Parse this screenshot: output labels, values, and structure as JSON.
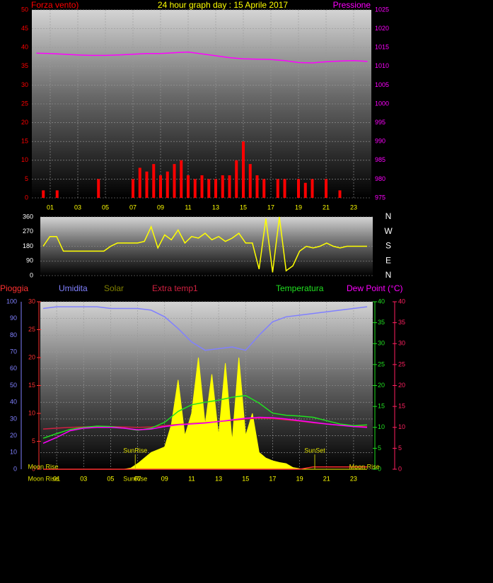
{
  "chart_data": [
    {
      "type": "line",
      "title": "24 hour graph day : 15 Aprile 2017",
      "grid": true,
      "xlim": [
        0,
        24
      ],
      "xticks": [
        {
          "value": 1,
          "label": "01"
        },
        {
          "value": 3,
          "label": "03"
        },
        {
          "value": 5,
          "label": "05"
        },
        {
          "value": 7,
          "label": "07"
        },
        {
          "value": 9,
          "label": "09"
        },
        {
          "value": 11,
          "label": "11"
        },
        {
          "value": 13,
          "label": "13"
        },
        {
          "value": 15,
          "label": "15"
        },
        {
          "value": 17,
          "label": "17"
        },
        {
          "value": 19,
          "label": "19"
        },
        {
          "value": 21,
          "label": "21"
        },
        {
          "value": 23,
          "label": "23"
        }
      ],
      "axes": [
        {
          "side": "left",
          "color": "#ff0000",
          "lim": [
            0,
            50
          ],
          "ticks": [
            0,
            5,
            10,
            15,
            20,
            25,
            30,
            35,
            40,
            45,
            50
          ]
        },
        {
          "side": "right",
          "color": "#ff00ff",
          "lim": [
            975,
            1025
          ],
          "ticks": [
            975,
            980,
            985,
            990,
            995,
            1000,
            1005,
            1010,
            1015,
            1020,
            1025
          ]
        }
      ],
      "series": [
        {
          "name": "Forza vento)",
          "color": "#ff0000",
          "mark": "bar",
          "axis": 0,
          "x": [
            0,
            0.5,
            1,
            1.5,
            2,
            2.5,
            3,
            3.5,
            4,
            4.5,
            5,
            5.5,
            6,
            6.5,
            7,
            7.5,
            8,
            8.5,
            9,
            9.5,
            10,
            10.5,
            11,
            11.5,
            12,
            12.5,
            13,
            13.5,
            14,
            14.5,
            15,
            15.5,
            16,
            16.5,
            17,
            17.5,
            18,
            18.5,
            19,
            19.5,
            20,
            20.5,
            21,
            21.5,
            22,
            22.5,
            23,
            23.5,
            24
          ],
          "values": [
            0,
            2,
            0,
            2,
            0,
            0,
            0,
            0,
            0,
            5,
            0,
            0,
            0,
            0,
            5,
            8,
            7,
            9,
            6,
            7,
            9,
            10,
            6,
            5,
            6,
            5,
            5,
            6,
            6,
            10,
            15,
            9,
            6,
            5,
            0,
            5,
            5,
            0,
            5,
            4,
            5,
            0,
            5,
            0,
            2,
            0,
            0,
            0,
            0
          ]
        },
        {
          "name": "Pressione",
          "color": "#ff00ff",
          "mark": "line",
          "axis": 1,
          "x": [
            0,
            1,
            2,
            3,
            4,
            5,
            6,
            7,
            8,
            9,
            10,
            11,
            12,
            13,
            14,
            15,
            16,
            17,
            18,
            19,
            20,
            21,
            22,
            23,
            24
          ],
          "values": [
            1013.5,
            1013.4,
            1013.2,
            1013.0,
            1012.9,
            1012.9,
            1013.0,
            1013.2,
            1013.4,
            1013.4,
            1013.6,
            1013.8,
            1013.3,
            1012.8,
            1012.3,
            1012.0,
            1011.9,
            1011.8,
            1011.5,
            1011.0,
            1010.9,
            1011.2,
            1011.4,
            1011.5,
            1011.3
          ]
        }
      ]
    },
    {
      "type": "line",
      "grid": true,
      "xlim": [
        0,
        24
      ],
      "axes": [
        {
          "side": "left",
          "color": "#ffffff",
          "lim": [
            0,
            360
          ],
          "ticks": [
            0,
            90,
            180,
            270,
            360
          ]
        },
        {
          "side": "right",
          "color": "#ffffff",
          "lim": [
            0,
            360
          ],
          "ticks": [
            {
              "value": 360,
              "label": "N"
            },
            {
              "value": 270,
              "label": "W"
            },
            {
              "value": 180,
              "label": "S"
            },
            {
              "value": 90,
              "label": "E"
            },
            {
              "value": 0,
              "label": "N"
            }
          ]
        }
      ],
      "series": [
        {
          "color": "#ffff00",
          "mark": "line",
          "axis": 0,
          "x": [
            0,
            0.5,
            1,
            1.5,
            2,
            2.5,
            3,
            3.5,
            4,
            4.5,
            5,
            5.5,
            6,
            6.5,
            7,
            7.5,
            8,
            8.5,
            9,
            9.5,
            10,
            10.5,
            11,
            11.5,
            12,
            12.5,
            13,
            13.5,
            14,
            14.5,
            15,
            15.5,
            16,
            16.5,
            17,
            17.5,
            18,
            18.5,
            19,
            19.5,
            20,
            20.5,
            21,
            21.5,
            22,
            22.5,
            23,
            23.5,
            24
          ],
          "values": [
            180,
            240,
            240,
            150,
            150,
            150,
            150,
            150,
            150,
            150,
            180,
            200,
            200,
            200,
            200,
            210,
            300,
            170,
            250,
            220,
            280,
            200,
            240,
            230,
            260,
            220,
            240,
            210,
            230,
            260,
            200,
            200,
            40,
            350,
            20,
            360,
            30,
            60,
            150,
            180,
            170,
            180,
            200,
            180,
            170,
            180,
            180,
            180,
            180
          ]
        }
      ]
    },
    {
      "type": "line",
      "grid": true,
      "xlim": [
        0,
        24
      ],
      "xticks": [
        {
          "value": 1,
          "label": "01"
        },
        {
          "value": 3,
          "label": "03"
        },
        {
          "value": 5,
          "label": "05"
        },
        {
          "value": 7,
          "label": "07"
        },
        {
          "value": 9,
          "label": "09"
        },
        {
          "value": 11,
          "label": "11"
        },
        {
          "value": 13,
          "label": "13"
        },
        {
          "value": 15,
          "label": "15"
        },
        {
          "value": 17,
          "label": "17"
        },
        {
          "value": 19,
          "label": "19"
        },
        {
          "value": 21,
          "label": "21"
        },
        {
          "value": 23,
          "label": "23"
        }
      ],
      "axes": [
        {
          "side": "left",
          "color": "#8080ff",
          "lim": [
            0,
            100
          ],
          "ticks": [
            0,
            10,
            20,
            30,
            40,
            50,
            60,
            70,
            80,
            90,
            100
          ]
        },
        {
          "side": "left",
          "color": "#ff3030",
          "lim": [
            0,
            30
          ],
          "ticks": [
            0,
            5,
            10,
            15,
            20,
            25,
            30
          ]
        },
        {
          "side": "right",
          "color": "#20e020",
          "lim": [
            0,
            40
          ],
          "ticks": [
            0,
            5,
            10,
            15,
            20,
            25,
            30,
            35,
            40
          ]
        },
        {
          "side": "right",
          "color": "#ff2060",
          "lim": [
            0,
            40
          ],
          "ticks": [
            0,
            5,
            10,
            15,
            20,
            25,
            30,
            35,
            40
          ]
        }
      ],
      "series": [
        {
          "name": "Pioggia",
          "color": "#ff3030",
          "mark": "line",
          "axis": 1,
          "x": [
            0,
            1,
            2,
            3,
            4,
            5,
            6,
            7,
            8,
            9,
            10,
            11,
            12,
            13,
            14,
            15,
            16,
            17,
            18,
            19,
            20,
            21,
            22,
            23,
            24
          ],
          "values": [
            0,
            0,
            0,
            0,
            0,
            0,
            0,
            0,
            0,
            0,
            0,
            0,
            0,
            0,
            0,
            0,
            0,
            0,
            0,
            0,
            0.4,
            0.4,
            0.4,
            0.4,
            0.4
          ]
        },
        {
          "name": "Umidita",
          "color": "#8080ff",
          "mark": "line",
          "axis": 0,
          "x": [
            0,
            1,
            2,
            3,
            4,
            5,
            6,
            7,
            8,
            9,
            10,
            11,
            12,
            13,
            14,
            15,
            16,
            17,
            18,
            19,
            20,
            21,
            22,
            23,
            24
          ],
          "values": [
            96,
            97,
            97,
            97,
            97,
            96,
            96,
            96,
            95,
            91,
            84,
            76,
            71,
            72,
            73,
            71,
            80,
            88,
            91,
            92,
            93,
            94,
            95,
            96,
            97
          ]
        },
        {
          "name": "Solar",
          "color": "#808000",
          "fill": "#ffff00",
          "mark": "area",
          "axis": 1,
          "x": [
            0,
            0.5,
            1,
            1.5,
            2,
            2.5,
            3,
            3.5,
            4,
            4.5,
            5,
            5.5,
            6,
            6.5,
            7,
            7.5,
            8,
            8.5,
            9,
            9.5,
            10,
            10.5,
            11,
            11.5,
            12,
            12.5,
            13,
            13.5,
            14,
            14.5,
            15,
            15.5,
            16,
            16.5,
            17,
            17.5,
            18,
            18.5,
            19,
            19.5,
            20,
            20.5,
            21,
            21.5,
            22,
            22.5,
            23,
            23.5,
            24
          ],
          "values": [
            0,
            0,
            0,
            0,
            0,
            0,
            0,
            0,
            0,
            0,
            0,
            0,
            0,
            0.2,
            1,
            2,
            3,
            3.5,
            4,
            8,
            16,
            6,
            10,
            20,
            8,
            17,
            6,
            19,
            5,
            20,
            6,
            10,
            3,
            2,
            1.5,
            1.2,
            1,
            0.3,
            0.1,
            0,
            0,
            0,
            0,
            0,
            0,
            0,
            0,
            0,
            0
          ]
        },
        {
          "name": "Extra temp1",
          "color": "#d02040",
          "mark": "line",
          "axis": 2,
          "x": [
            0,
            1,
            2,
            3,
            4,
            5,
            6,
            7,
            8,
            9,
            10,
            11,
            12,
            13,
            14,
            15,
            16,
            17,
            18,
            19,
            20,
            21,
            22,
            23,
            24
          ],
          "values": [
            9.6,
            9.8,
            10.0,
            10.1,
            10.2,
            10.2,
            10.1,
            10.0,
            10.1,
            10.4,
            10.7,
            10.9,
            11.1,
            11.4,
            11.7,
            12.0,
            12.2,
            12.1,
            11.8,
            11.5,
            11.1,
            10.8,
            10.5,
            10.3,
            10.2
          ]
        },
        {
          "name": "Temperatura",
          "color": "#20e020",
          "mark": "line",
          "axis": 2,
          "x": [
            0,
            1,
            2,
            3,
            4,
            5,
            6,
            7,
            8,
            9,
            10,
            11,
            12,
            13,
            14,
            15,
            16,
            17,
            18,
            19,
            20,
            21,
            22,
            23,
            24
          ],
          "values": [
            7.4,
            8.5,
            9.5,
            10.0,
            10.3,
            10.2,
            9.8,
            9.3,
            9.8,
            11.2,
            13.8,
            15.4,
            16.0,
            16.5,
            17.2,
            17.6,
            15.8,
            13.4,
            12.9,
            12.7,
            12.4,
            11.6,
            10.8,
            10.4,
            10.6
          ]
        },
        {
          "name": "Dew Point (°C)",
          "color": "#ff00ff",
          "mark": "line",
          "axis": 3,
          "x": [
            0,
            1,
            2,
            3,
            4,
            5,
            6,
            7,
            8,
            9,
            10,
            11,
            12,
            13,
            14,
            15,
            16,
            17,
            18,
            19,
            20,
            21,
            22,
            23,
            24
          ],
          "values": [
            6.2,
            7.6,
            9.2,
            9.8,
            10.0,
            10.0,
            9.8,
            9.4,
            9.6,
            10.2,
            10.6,
            10.8,
            11.0,
            11.4,
            11.8,
            12.2,
            12.4,
            12.3,
            12.0,
            11.6,
            11.2,
            10.8,
            10.5,
            10.2,
            10.0
          ]
        }
      ],
      "annotations": [
        {
          "text": "SunRise",
          "x": 6.3
        },
        {
          "text": "SunSet",
          "x": 19.6
        },
        {
          "text": "Moon Rise",
          "x": 0
        },
        {
          "text": "Moon Rise",
          "x": 23.8
        }
      ],
      "x_annotations": [
        {
          "text": "Moon Rise",
          "x": 0
        },
        {
          "text": "SunRise",
          "x": 6.3
        }
      ]
    }
  ]
}
